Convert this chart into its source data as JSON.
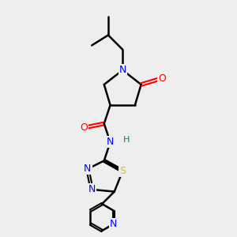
{
  "background_color": "#eeeeee",
  "bond_color": "#000000",
  "atom_colors": {
    "N": "#0000ff",
    "O": "#ff0000",
    "S": "#cccc00",
    "H": "#008080",
    "C": "#000000"
  },
  "figsize": [
    3.0,
    3.0
  ],
  "dpi": 100
}
